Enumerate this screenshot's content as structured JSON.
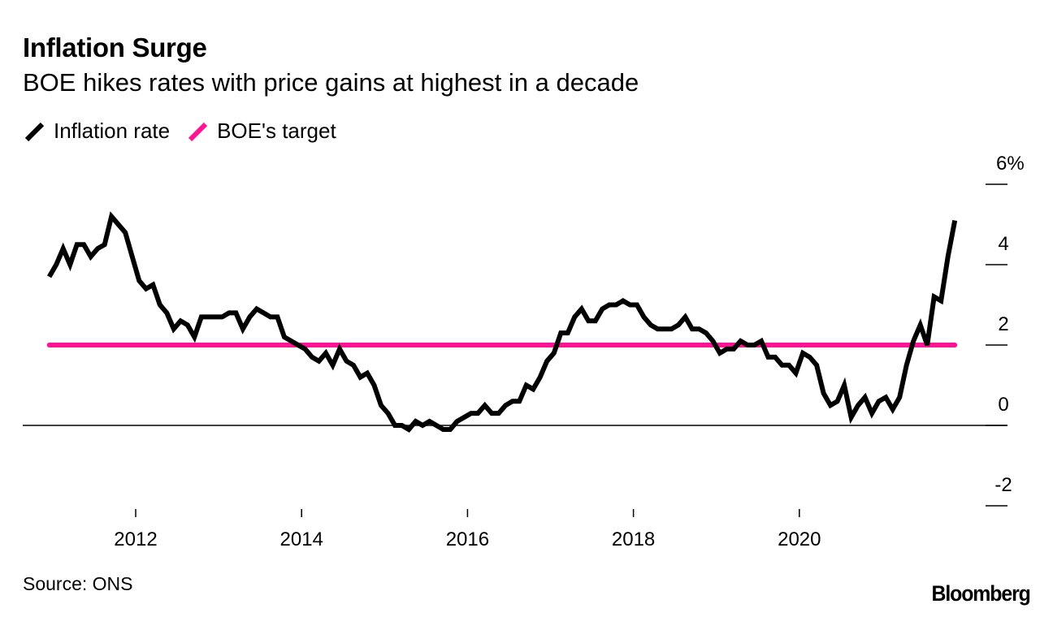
{
  "header": {
    "title": "Inflation Surge",
    "subtitle": "BOE hikes rates with price gains at highest in a decade"
  },
  "legend": [
    {
      "label": "Inflation rate",
      "color": "#000000",
      "icon": "slash-line-swatch"
    },
    {
      "label": "BOE's target",
      "color": "#ff1493",
      "icon": "slash-line-swatch"
    }
  ],
  "footer": {
    "source": "Source: ONS",
    "logo": "Bloomberg"
  },
  "chart_data": {
    "type": "line",
    "title": "Inflation Surge",
    "subtitle": "BOE hikes rates with price gains at highest in a decade",
    "xlabel": "",
    "ylabel": "",
    "y_unit": "%",
    "ylim": [
      -2,
      6
    ],
    "y_ticks": [
      {
        "value": 6,
        "label": "6%"
      },
      {
        "value": 4,
        "label": "4"
      },
      {
        "value": 2,
        "label": "2"
      },
      {
        "value": 0,
        "label": "0"
      },
      {
        "value": -2,
        "label": "-2"
      }
    ],
    "x_ticks": [
      {
        "value": 2012,
        "label": "2012"
      },
      {
        "value": 2014,
        "label": "2014"
      },
      {
        "value": 2016,
        "label": "2016"
      },
      {
        "value": 2018,
        "label": "2018"
      },
      {
        "value": 2020,
        "label": "2020"
      }
    ],
    "x_start": "2010-12",
    "x_end": "2021-11",
    "grid": false,
    "zero_line": true,
    "y_axis_position": "right",
    "legend_position": "top-left",
    "series": [
      {
        "name": "Inflation rate",
        "color": "#000000",
        "start": "2010-12",
        "frequency": "monthly",
        "values": [
          3.7,
          4.0,
          4.4,
          4.0,
          4.5,
          4.5,
          4.2,
          4.4,
          4.5,
          5.2,
          5.0,
          4.8,
          4.2,
          3.6,
          3.4,
          3.5,
          3.0,
          2.8,
          2.4,
          2.6,
          2.5,
          2.2,
          2.7,
          2.7,
          2.7,
          2.7,
          2.8,
          2.8,
          2.4,
          2.7,
          2.9,
          2.8,
          2.7,
          2.7,
          2.2,
          2.1,
          2.0,
          1.9,
          1.7,
          1.6,
          1.8,
          1.5,
          1.9,
          1.6,
          1.5,
          1.2,
          1.3,
          1.0,
          0.5,
          0.3,
          0.0,
          0.0,
          -0.1,
          0.1,
          0.0,
          0.1,
          0.0,
          -0.1,
          -0.1,
          0.1,
          0.2,
          0.3,
          0.3,
          0.5,
          0.3,
          0.3,
          0.5,
          0.6,
          0.6,
          1.0,
          0.9,
          1.2,
          1.6,
          1.8,
          2.3,
          2.3,
          2.7,
          2.9,
          2.6,
          2.6,
          2.9,
          3.0,
          3.0,
          3.1,
          3.0,
          3.0,
          2.7,
          2.5,
          2.4,
          2.4,
          2.4,
          2.5,
          2.7,
          2.4,
          2.4,
          2.3,
          2.1,
          1.8,
          1.9,
          1.9,
          2.1,
          2.0,
          2.0,
          2.1,
          1.7,
          1.7,
          1.5,
          1.5,
          1.3,
          1.8,
          1.7,
          1.5,
          0.8,
          0.5,
          0.6,
          1.0,
          0.2,
          0.5,
          0.7,
          0.3,
          0.6,
          0.7,
          0.4,
          0.7,
          1.5,
          2.1,
          2.5,
          2.0,
          3.2,
          3.1,
          4.2,
          5.1
        ]
      },
      {
        "name": "BOE's target",
        "color": "#ff1493",
        "constant": 2.0,
        "start": "2010-12",
        "end": "2021-11"
      }
    ]
  }
}
